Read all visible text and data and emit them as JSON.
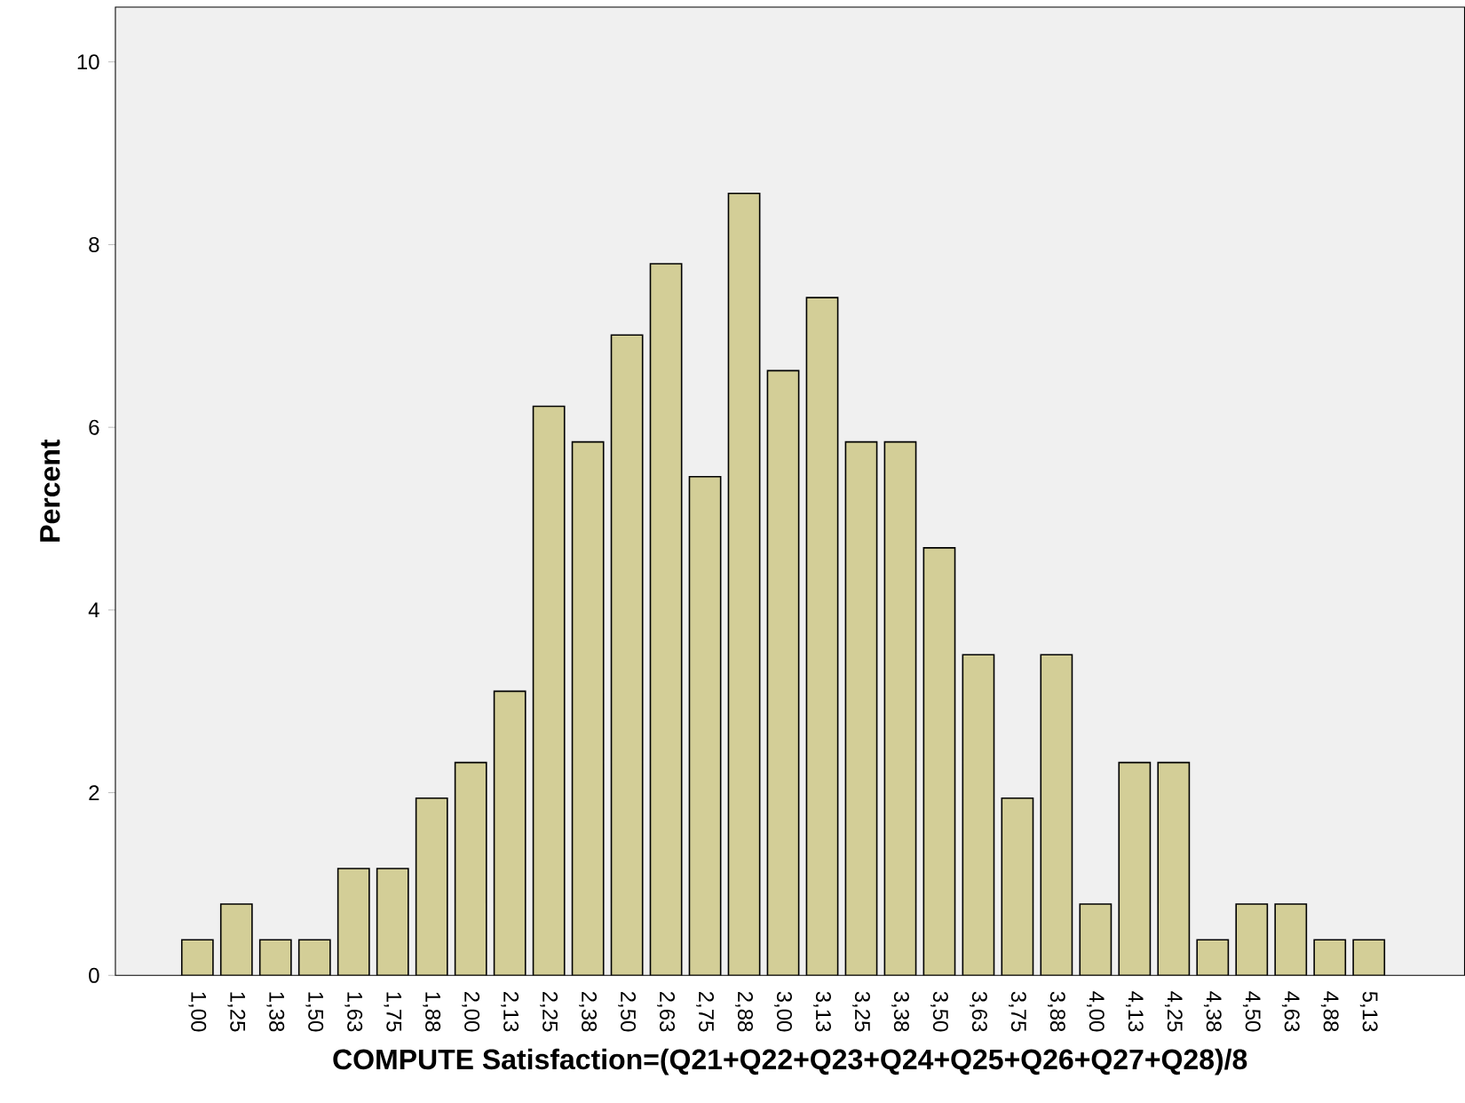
{
  "chart_data": {
    "type": "bar",
    "xlabel": "COMPUTE Satisfaction=(Q21+Q22+Q23+Q24+Q25+Q26+Q27+Q28)/8",
    "ylabel": "Percent",
    "categories": [
      "1,00",
      "1,25",
      "1,38",
      "1,50",
      "1,63",
      "1,75",
      "1,88",
      "2,00",
      "2,13",
      "2,25",
      "2,38",
      "2,50",
      "2,63",
      "2,75",
      "2,88",
      "3,00",
      "3,13",
      "3,25",
      "3,38",
      "3,50",
      "3,63",
      "3,75",
      "3,88",
      "4,00",
      "4,13",
      "4,25",
      "4,38",
      "4,50",
      "4,63",
      "4,88",
      "5,13"
    ],
    "values": [
      0.39,
      0.78,
      0.39,
      0.39,
      1.17,
      1.17,
      1.94,
      2.33,
      3.11,
      6.23,
      5.84,
      7.01,
      7.79,
      5.46,
      8.56,
      6.62,
      7.42,
      5.84,
      5.84,
      4.68,
      3.51,
      1.94,
      3.51,
      0.78,
      2.33,
      2.33,
      0.39,
      0.78,
      0.78,
      0.39,
      0.39
    ],
    "color": "#d3ce97",
    "ylim": [
      0,
      10.6
    ],
    "yticks": [
      0,
      2,
      4,
      6,
      8,
      10
    ],
    "grid": false
  }
}
